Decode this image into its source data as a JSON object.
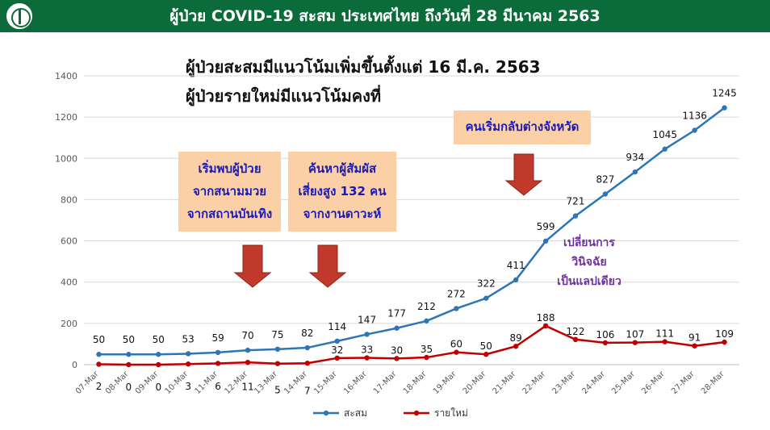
{
  "header": {
    "title": "ผู้ป่วย COVID-19 สะสม  ประเทศไทย ถึงวันที่ 28 มีนาคม 2563"
  },
  "headlines": [
    "ผู้ป่วยสะสมมีแนวโน้มเพิ่มขึ้นตั้งแต่ 16 มี.ค. 2563",
    "ผู้ป่วยรายใหม่มีแนวโน้มคงที่"
  ],
  "callouts": [
    {
      "lines": [
        "เริ่มพบผู้ป่วย",
        "จากสนามมวย",
        "จากสถานบันเทิง"
      ]
    },
    {
      "lines": [
        "ค้นหาผู้สัมผัส",
        "เสี่ยงสูง 132 คน",
        "จากงานดาวะห์"
      ]
    },
    {
      "lines": [
        "คนเริ่มกลับต่างจังหวัด"
      ]
    }
  ],
  "note": {
    "lines": [
      "เปลี่ยนการ",
      "วินิจฉัย",
      "เป็นแลปเดียว"
    ]
  },
  "colors": {
    "header": "#0b6b3a",
    "cumulative": "#2e75b6",
    "new": "#c00000",
    "callout_bg": "#fbd0a7",
    "callout_text": "#1a1ab4",
    "arrow": "#c0392b",
    "note": "#7030a0"
  },
  "chart_data": {
    "type": "line",
    "categories": [
      "07-Mar",
      "08-Mar",
      "09-Mar",
      "10-Mar",
      "11-Mar",
      "12-Mar",
      "13-Mar",
      "14-Mar",
      "15-Mar",
      "16-Mar",
      "17-Mar",
      "18-Mar",
      "19-Mar",
      "20-Mar",
      "21-Mar",
      "22-Mar",
      "23-Mar",
      "24-Mar",
      "25-Mar",
      "26-Mar",
      "27-Mar",
      "28-Mar"
    ],
    "series": [
      {
        "name": "สะสม",
        "values": [
          50,
          50,
          50,
          53,
          59,
          70,
          75,
          82,
          114,
          147,
          177,
          212,
          272,
          322,
          411,
          599,
          721,
          827,
          934,
          1045,
          1136,
          1245
        ]
      },
      {
        "name": "รายใหม่",
        "values": [
          2,
          0,
          0,
          3,
          6,
          11,
          5,
          7,
          32,
          33,
          30,
          35,
          60,
          50,
          89,
          188,
          122,
          106,
          107,
          111,
          91,
          109
        ]
      }
    ],
    "ylim": [
      0,
      1400
    ],
    "yticks": [
      0,
      200,
      400,
      600,
      800,
      1000,
      1200,
      1400
    ],
    "grid": true,
    "legend": "bottom-center"
  }
}
